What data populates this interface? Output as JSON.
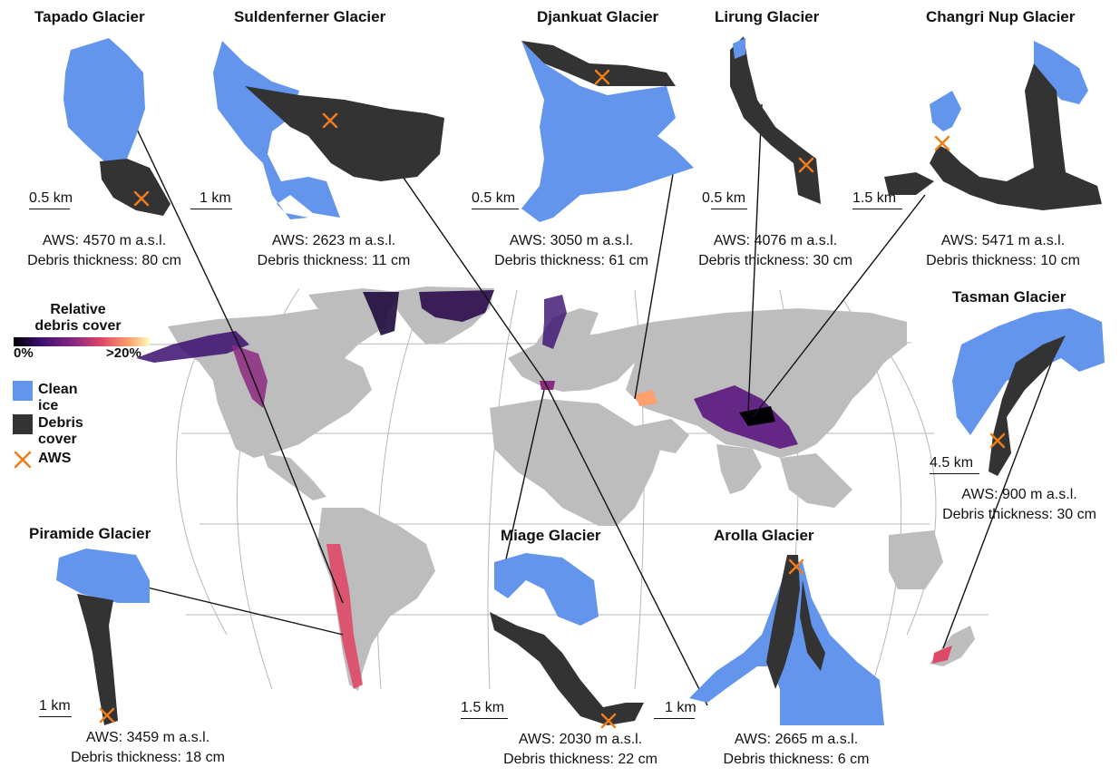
{
  "colors": {
    "clean_ice": "#6495ed",
    "debris": "#333333",
    "aws": "#f07d1a",
    "land": "#bdbdbd",
    "grid": "#bbbbbb",
    "gradient": [
      "#000004",
      "#3b0f70",
      "#8c2981",
      "#de4968",
      "#fe9f6d",
      "#fcfdbf"
    ]
  },
  "legend": {
    "title_line1": "Relative",
    "title_line2": "debris cover",
    "min": "0%",
    "max": ">20%",
    "clean_ice": "Clean ice",
    "debris_cover": "Debris cover",
    "aws": "AWS"
  },
  "glaciers": [
    {
      "id": "tapado",
      "name": "Tapado Glacier",
      "scale": "0.5 km",
      "aws": "AWS: 4570 m a.s.l.",
      "debris": "Debris thickness: 80 cm"
    },
    {
      "id": "suldenferner",
      "name": "Suldenferner Glacier",
      "scale": "1 km",
      "aws": "AWS: 2623 m a.s.l.",
      "debris": "Debris thickness: 11 cm"
    },
    {
      "id": "djankuat",
      "name": "Djankuat Glacier",
      "scale": "0.5 km",
      "aws": "AWS: 3050 m a.s.l.",
      "debris": "Debris thickness: 61 cm"
    },
    {
      "id": "lirung",
      "name": "Lirung Glacier",
      "scale": "0.5 km",
      "aws": "AWS: 4076 m a.s.l.",
      "debris": "Debris thickness: 30 cm"
    },
    {
      "id": "changri",
      "name": "Changri Nup Glacier",
      "scale": "1.5 km",
      "aws": "AWS: 5471 m a.s.l.",
      "debris": "Debris thickness: 10 cm"
    },
    {
      "id": "tasman",
      "name": "Tasman Glacier",
      "scale": "4.5 km",
      "aws": "AWS: 900 m a.s.l.",
      "debris": "Debris thickness: 30 cm"
    },
    {
      "id": "piramide",
      "name": "Piramide Glacier",
      "scale": "1 km",
      "aws": "AWS: 3459 m a.s.l.",
      "debris": "Debris thickness: 18 cm"
    },
    {
      "id": "miage",
      "name": "Miage Glacier",
      "scale": "1.5 km",
      "aws": "AWS: 2030 m a.s.l.",
      "debris": "Debris thickness: 22 cm"
    },
    {
      "id": "arolla",
      "name": "Arolla Glacier",
      "scale": "1 km",
      "aws": "AWS: 2665 m a.s.l.",
      "debris": "Debris thickness: 6 cm"
    }
  ]
}
